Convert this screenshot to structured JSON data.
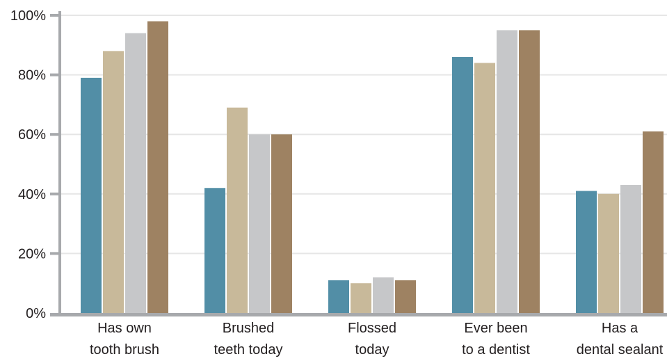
{
  "chart_data": {
    "type": "bar",
    "categories": [
      [
        "Has own",
        "tooth brush"
      ],
      [
        "Brushed",
        "teeth today"
      ],
      [
        "Flossed",
        "today"
      ],
      [
        "Ever been",
        "to a dentist"
      ],
      [
        "Has a",
        "dental sealant"
      ]
    ],
    "series": [
      {
        "values": [
          79,
          42,
          11,
          86,
          41
        ],
        "color": "#528ea6"
      },
      {
        "values": [
          88,
          69,
          10,
          84,
          40
        ],
        "color": "#c8b99a"
      },
      {
        "values": [
          94,
          60,
          12,
          95,
          43
        ],
        "color": "#c6c7c9"
      },
      {
        "values": [
          98,
          60,
          11,
          95,
          61
        ],
        "color": "#9e8262"
      }
    ],
    "ylim": [
      0,
      100
    ],
    "yticks": [
      "0%",
      "20%",
      "40%",
      "60%",
      "80%",
      "100%"
    ],
    "ytick_values": [
      0,
      20,
      40,
      60,
      80,
      100
    ],
    "grid": true,
    "axis_color": "#a7a9ac",
    "grid_color": "#e6e6e6"
  }
}
